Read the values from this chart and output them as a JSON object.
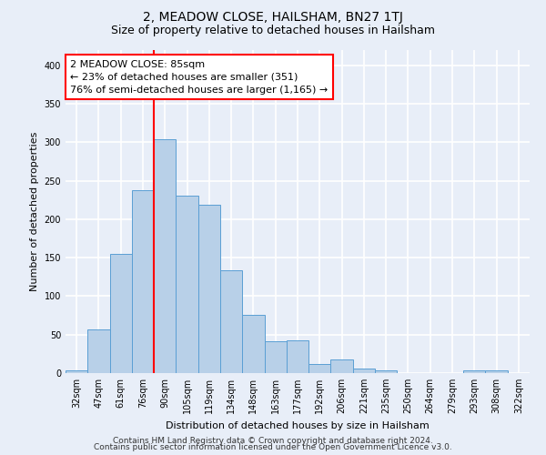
{
  "title": "2, MEADOW CLOSE, HAILSHAM, BN27 1TJ",
  "subtitle": "Size of property relative to detached houses in Hailsham",
  "xlabel": "Distribution of detached houses by size in Hailsham",
  "ylabel": "Number of detached properties",
  "categories": [
    "32sqm",
    "47sqm",
    "61sqm",
    "76sqm",
    "90sqm",
    "105sqm",
    "119sqm",
    "134sqm",
    "148sqm",
    "163sqm",
    "177sqm",
    "192sqm",
    "206sqm",
    "221sqm",
    "235sqm",
    "250sqm",
    "264sqm",
    "279sqm",
    "293sqm",
    "308sqm",
    "322sqm"
  ],
  "values": [
    4,
    57,
    155,
    238,
    304,
    231,
    219,
    134,
    76,
    42,
    43,
    12,
    18,
    6,
    4,
    0,
    0,
    0,
    4,
    3,
    0
  ],
  "bar_color": "#b8d0e8",
  "bar_edgecolor": "#5a9fd4",
  "bar_linewidth": 0.7,
  "red_line_x": 3.5,
  "annotation_text": "2 MEADOW CLOSE: 85sqm\n← 23% of detached houses are smaller (351)\n76% of semi-detached houses are larger (1,165) →",
  "annotation_box_color": "white",
  "annotation_box_edgecolor": "red",
  "vline_color": "red",
  "ylim": [
    0,
    420
  ],
  "yticks": [
    0,
    50,
    100,
    150,
    200,
    250,
    300,
    350,
    400
  ],
  "footer1": "Contains HM Land Registry data © Crown copyright and database right 2024.",
  "footer2": "Contains public sector information licensed under the Open Government Licence v3.0.",
  "bg_color": "#e8eef8",
  "plot_bg_color": "#e8eef8",
  "grid_color": "white",
  "title_fontsize": 10,
  "subtitle_fontsize": 9,
  "label_fontsize": 8,
  "tick_fontsize": 7,
  "annotation_fontsize": 8,
  "footer_fontsize": 6.5
}
